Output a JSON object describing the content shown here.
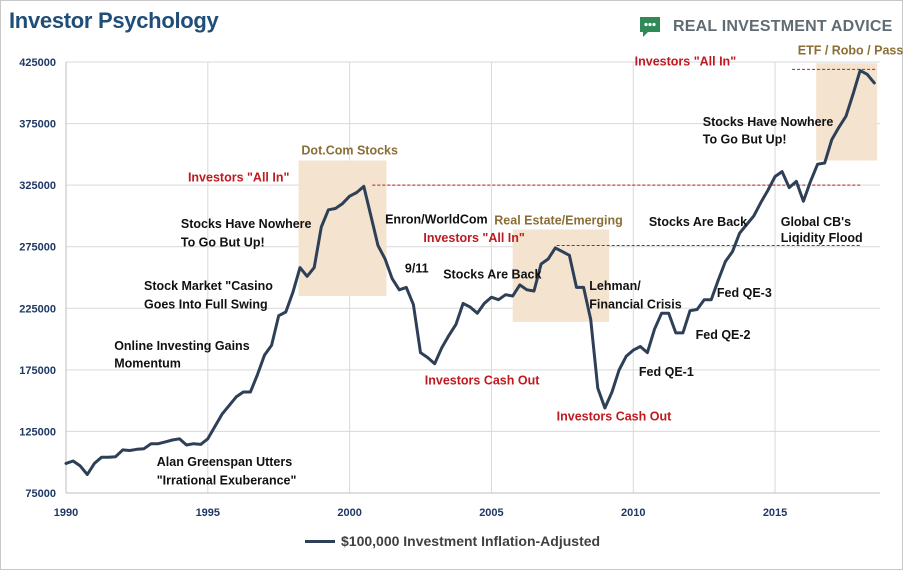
{
  "title": "Investor Psychology",
  "brand": {
    "name": "REAL INVESTMENT ADVICE",
    "icon": "chat-bubble-logo-icon",
    "icon_color": "#2e8b57"
  },
  "colors": {
    "line": "#2e4057",
    "highlight": "#f3e3cf",
    "red_annotation": "#c0191f",
    "brown_annotation": "#8b6e36",
    "black_annotation": "#111111",
    "grid": "#d9d9d9"
  },
  "chart_data": {
    "type": "line",
    "title": "Investor Psychology",
    "xlabel": "",
    "ylabel": "",
    "xlim": [
      1990,
      2018.7
    ],
    "ylim": [
      75000,
      425000
    ],
    "grid": true,
    "legend_position": "bottom",
    "x_ticks": [
      1990,
      1995,
      2000,
      2005,
      2010,
      2015
    ],
    "y_ticks": [
      75000,
      125000,
      175000,
      225000,
      275000,
      325000,
      375000,
      425000
    ],
    "series": [
      {
        "name": "$100,000 Investment Inflation-Adjusted",
        "x": [
          1990.0,
          1990.25,
          1990.5,
          1990.75,
          1991.0,
          1991.25,
          1991.5,
          1991.75,
          1992.0,
          1992.25,
          1992.5,
          1992.75,
          1993.0,
          1993.25,
          1993.5,
          1993.75,
          1994.0,
          1994.25,
          1994.5,
          1994.75,
          1995.0,
          1995.25,
          1995.5,
          1995.75,
          1996.0,
          1996.25,
          1996.5,
          1996.75,
          1997.0,
          1997.25,
          1997.5,
          1997.75,
          1998.0,
          1998.25,
          1998.5,
          1998.75,
          1999.0,
          1999.25,
          1999.5,
          1999.75,
          2000.0,
          2000.25,
          2000.5,
          2000.75,
          2001.0,
          2001.25,
          2001.5,
          2001.75,
          2002.0,
          2002.25,
          2002.5,
          2002.75,
          2003.0,
          2003.25,
          2003.5,
          2003.75,
          2004.0,
          2004.25,
          2004.5,
          2004.75,
          2005.0,
          2005.25,
          2005.5,
          2005.75,
          2006.0,
          2006.25,
          2006.5,
          2006.75,
          2007.0,
          2007.25,
          2007.5,
          2007.75,
          2008.0,
          2008.25,
          2008.5,
          2008.75,
          2009.0,
          2009.25,
          2009.5,
          2009.75,
          2010.0,
          2010.25,
          2010.5,
          2010.75,
          2011.0,
          2011.25,
          2011.5,
          2011.75,
          2012.0,
          2012.25,
          2012.5,
          2012.75,
          2013.0,
          2013.25,
          2013.5,
          2013.75,
          2014.0,
          2014.25,
          2014.5,
          2014.75,
          2015.0,
          2015.25,
          2015.5,
          2015.75,
          2016.0,
          2016.25,
          2016.5,
          2016.75,
          2017.0,
          2017.25,
          2017.5,
          2017.75,
          2018.0,
          2018.25,
          2018.5
        ],
        "values": [
          99000,
          101000,
          97000,
          90000,
          99000,
          104000,
          104000,
          104500,
          110000,
          109500,
          110500,
          111000,
          115000,
          115000,
          116500,
          118000,
          119000,
          114000,
          115000,
          114500,
          119000,
          129000,
          139000,
          146000,
          153000,
          157000,
          157000,
          171000,
          187000,
          195000,
          219000,
          222000,
          238000,
          258000,
          251000,
          258000,
          291000,
          305000,
          306000,
          310000,
          316000,
          319000,
          324000,
          300000,
          276000,
          265000,
          249000,
          240000,
          242000,
          228000,
          189000,
          185000,
          180000,
          193000,
          203000,
          212000,
          229000,
          226000,
          221000,
          229000,
          234000,
          232000,
          236000,
          235000,
          244000,
          240000,
          239000,
          261000,
          265000,
          274000,
          271000,
          268000,
          242000,
          242000,
          216000,
          160000,
          144000,
          157000,
          175000,
          186000,
          191000,
          194000,
          189000,
          208000,
          221000,
          221000,
          205000,
          205000,
          223000,
          224000,
          232000,
          232000,
          248000,
          263000,
          271000,
          286000,
          293000,
          300000,
          311000,
          321000,
          332000,
          336000,
          323000,
          328000,
          312000,
          328000,
          342000,
          343000,
          362000,
          372000,
          381000,
          399000,
          418000,
          415000,
          408000
        ]
      }
    ],
    "highlight_zones": [
      {
        "label": "Dot.Com Stocks",
        "x_start": 1998.2,
        "x_end": 2001.3,
        "y_min": 235000,
        "y_max": 345000
      },
      {
        "label": "Real Estate/Emerging",
        "x_start": 2005.75,
        "x_end": 2009.15,
        "y_min": 214000,
        "y_max": 289000
      },
      {
        "label": "ETF / Robo / Passive",
        "x_start": 2016.45,
        "x_end": 2018.6,
        "y_min": 345000,
        "y_max": 424000
      }
    ],
    "reference_lines": [
      {
        "label": "Investors \"All In\"",
        "y": 325000,
        "x_start": 2000.8,
        "x_end": 2018.0
      },
      {
        "label": "Investors \"All In\"",
        "y": 276000,
        "x_start": 2007.3,
        "x_end": 2018.0
      },
      {
        "label": "Investors \"All In\"",
        "y": 419000,
        "x_start": 2015.6,
        "x_end": 2018.6
      }
    ],
    "annotations": [
      {
        "text": "Alan Greenspan Utters",
        "x": 1993.2,
        "y": 97000,
        "color": "black"
      },
      {
        "text": "\"Irrational Exuberance\"",
        "x": 1993.2,
        "y": 82000,
        "color": "black"
      },
      {
        "text": "Online Investing Gains",
        "x": 1991.7,
        "y": 191000,
        "color": "black"
      },
      {
        "text": "Momentum",
        "x": 1991.7,
        "y": 177000,
        "color": "black"
      },
      {
        "text": "Stock Market \"Casino",
        "x": 1992.75,
        "y": 240000,
        "color": "black"
      },
      {
        "text": "Goes Into Full Swing",
        "x": 1992.75,
        "y": 225000,
        "color": "black"
      },
      {
        "text": "Stocks Have Nowhere",
        "x": 1994.05,
        "y": 290000,
        "color": "black"
      },
      {
        "text": "To Go But Up!",
        "x": 1994.05,
        "y": 275000,
        "color": "black"
      },
      {
        "text": "Enron/WorldCom",
        "x": 2001.25,
        "y": 294000,
        "color": "black"
      },
      {
        "text": "9/11",
        "x": 2001.95,
        "y": 254000,
        "color": "black"
      },
      {
        "text": "Stocks Are Back",
        "x": 2003.3,
        "y": 249000,
        "color": "black"
      },
      {
        "text": "Lehman/",
        "x": 2008.45,
        "y": 240000,
        "color": "black"
      },
      {
        "text": "Financial Crisis",
        "x": 2008.45,
        "y": 225000,
        "color": "black"
      },
      {
        "text": "Stocks Are Back",
        "x": 2010.55,
        "y": 292000,
        "color": "black"
      },
      {
        "text": "Fed QE-3",
        "x": 2012.95,
        "y": 234000,
        "color": "black"
      },
      {
        "text": "Fed QE-2",
        "x": 2012.2,
        "y": 200000,
        "color": "black"
      },
      {
        "text": "Fed QE-1",
        "x": 2010.2,
        "y": 170000,
        "color": "black"
      },
      {
        "text": "Stocks Have Nowhere",
        "x": 2012.45,
        "y": 373000,
        "color": "black"
      },
      {
        "text": "To Go But Up!",
        "x": 2012.45,
        "y": 359000,
        "color": "black"
      },
      {
        "text": "Global CB's",
        "x": 2015.2,
        "y": 292000,
        "color": "black"
      },
      {
        "text": "Liqidity Flood",
        "x": 2015.2,
        "y": 279000,
        "color": "black"
      },
      {
        "text": "Investors Cash Out",
        "x": 2002.65,
        "y": 163000,
        "color": "red"
      },
      {
        "text": "Investors Cash Out",
        "x": 2007.3,
        "y": 134000,
        "color": "red"
      },
      {
        "text": "Dot.Com Stocks",
        "x": 1998.3,
        "y": 350000,
        "color": "brown"
      },
      {
        "text": "Real Estate/Emerging",
        "x": 2005.1,
        "y": 293000,
        "color": "brown"
      },
      {
        "text": "ETF / Robo / Passive",
        "x": 2015.8,
        "y": 431000,
        "color": "brown"
      },
      {
        "text": "Investors \"All In\"",
        "x": 1994.3,
        "y": 328000,
        "color": "red"
      },
      {
        "text": "Investors \"All In\"",
        "x": 2002.6,
        "y": 279000,
        "color": "red"
      },
      {
        "text": "Investors \"All In\"",
        "x": 2010.05,
        "y": 422000,
        "color": "red"
      }
    ]
  }
}
